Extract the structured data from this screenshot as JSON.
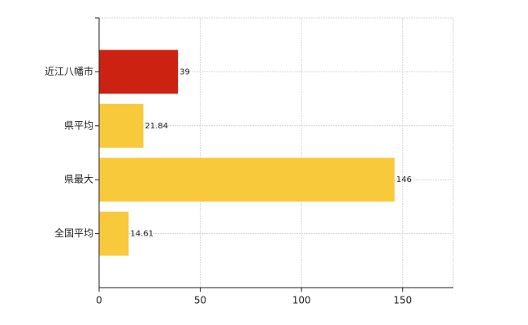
{
  "chart_data": {
    "type": "bar",
    "orientation": "horizontal",
    "categories": [
      "近江八幡市",
      "県平均",
      "県最大",
      "全国平均"
    ],
    "values": [
      39,
      21.84,
      146,
      14.61
    ],
    "colors": [
      "#cc2211",
      "#f9c93c",
      "#f9c93c",
      "#f9c93c"
    ],
    "xlim": [
      0,
      175
    ],
    "xticks": [
      0,
      50,
      100,
      150
    ],
    "grid": true
  }
}
